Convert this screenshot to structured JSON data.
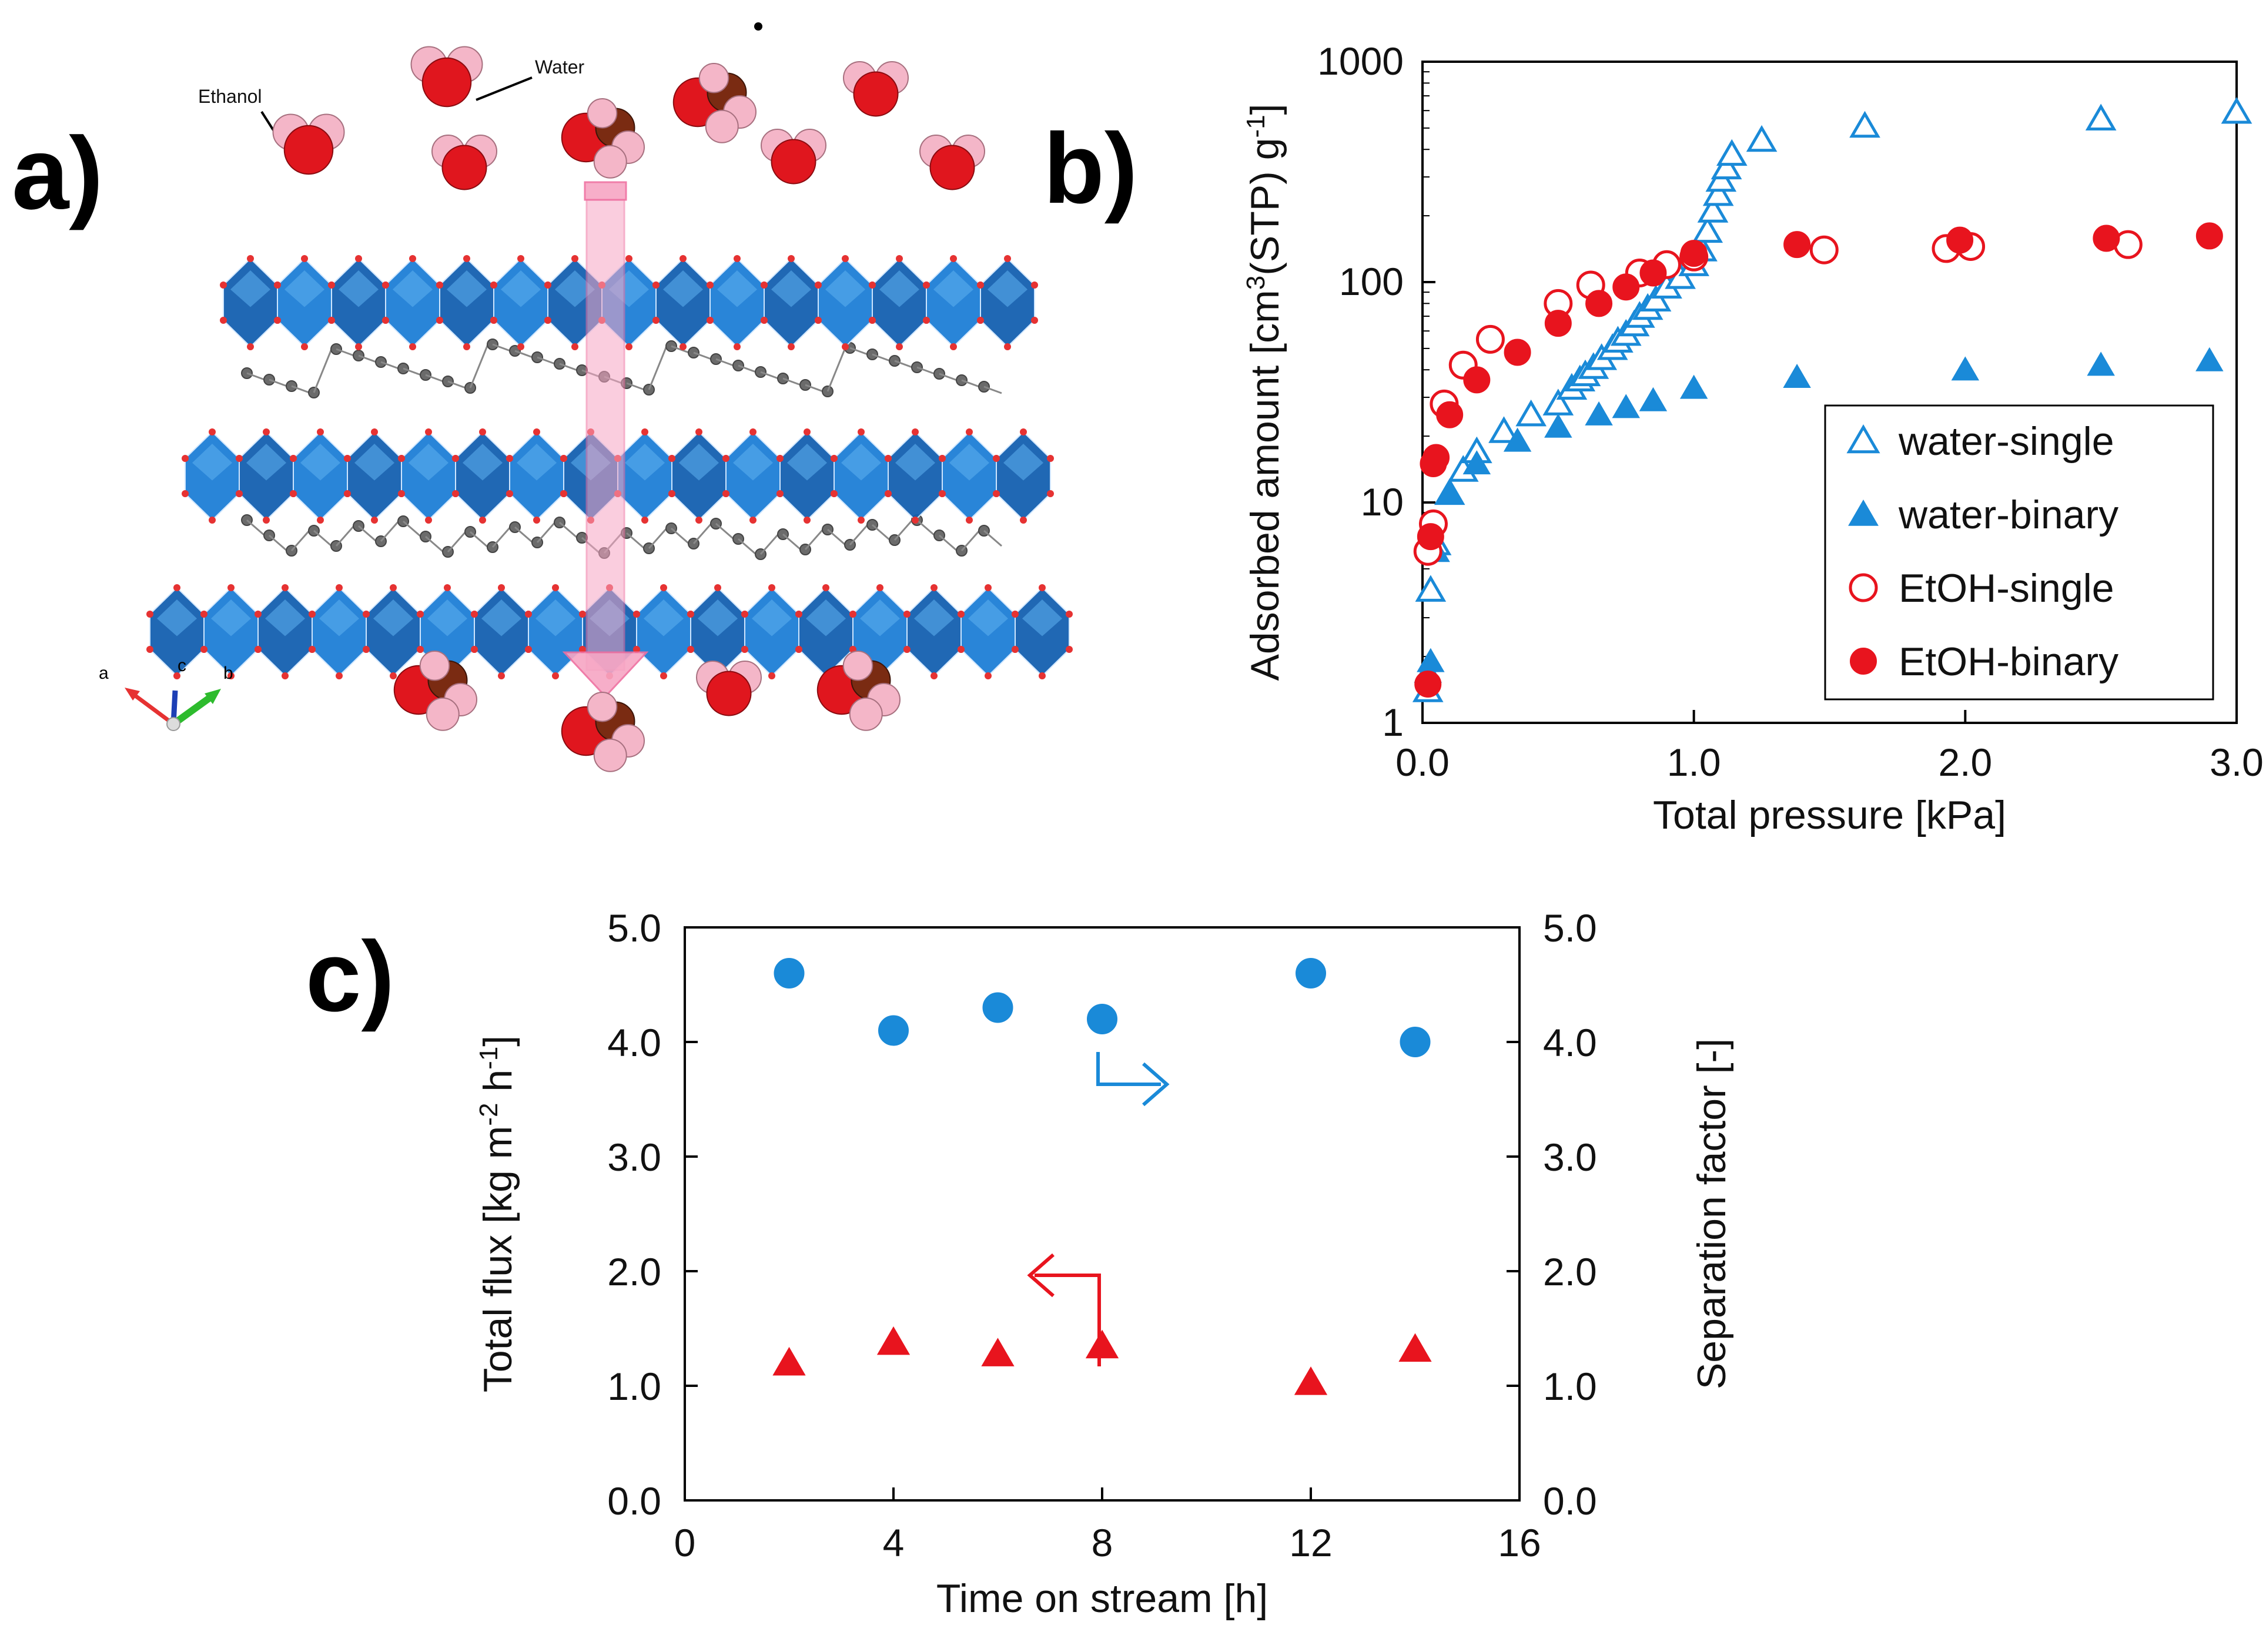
{
  "panels": {
    "a": {
      "label": "a)",
      "molecule_labels": {
        "ethanol": "Ethanol",
        "water": "Water"
      },
      "axis_labels": {
        "a": "a",
        "b": "b",
        "c": "c"
      },
      "colors": {
        "polyhedra": "#1e7fd6",
        "polyhedra_dark": "#1560b0",
        "oxygen": "#e63232",
        "linker": "#6b6b6b",
        "arrow": "#f7a6c4",
        "molecule_h": "#f4b6c8",
        "molecule_o": "#e0161e",
        "molecule_c": "#7a2b12"
      }
    },
    "b": {
      "label": "b)"
    },
    "c": {
      "label": "c)"
    }
  },
  "chart_data": [
    {
      "id": "b",
      "type": "scatter",
      "xlabel": "Total pressure [kPa]",
      "ylabel_parts": [
        "Adsorbed amount [cm",
        "3",
        "(STP) g",
        "-1",
        "]"
      ],
      "yscale": "log",
      "xlim": [
        0,
        3.0
      ],
      "ylim": [
        1,
        1000
      ],
      "xticks": [
        0,
        1.0,
        2.0,
        3.0
      ],
      "xtick_labels": [
        "0.0",
        "1.0",
        "2.0",
        "3.0"
      ],
      "yticks": [
        1,
        10,
        100,
        1000
      ],
      "ytick_labels": [
        "1",
        "10",
        "100",
        "1000"
      ],
      "legend_position": "bottom-right",
      "series": [
        {
          "name": "water-single",
          "marker": "triangle",
          "filled": false,
          "color": "#1a8ad8",
          "x": [
            0.02,
            0.03,
            0.05,
            0.1,
            0.15,
            0.2,
            0.3,
            0.4,
            0.5,
            0.55,
            0.58,
            0.6,
            0.63,
            0.66,
            0.7,
            0.72,
            0.75,
            0.78,
            0.8,
            0.83,
            0.86,
            0.9,
            0.95,
            1.0,
            1.03,
            1.05,
            1.07,
            1.09,
            1.1,
            1.12,
            1.14,
            1.25,
            1.63,
            2.5,
            3.0
          ],
          "y": [
            1.4,
            4.0,
            6.5,
            11,
            14,
            17,
            21,
            25,
            28,
            33,
            36,
            38,
            41,
            45,
            50,
            54,
            58,
            64,
            70,
            76,
            83,
            95,
            105,
            120,
            140,
            170,
            210,
            250,
            290,
            330,
            380,
            440,
            510,
            550,
            590
          ]
        },
        {
          "name": "water-binary",
          "marker": "triangle",
          "filled": true,
          "color": "#1a8ad8",
          "x": [
            0.02,
            0.03,
            0.05,
            0.1,
            0.2,
            0.35,
            0.5,
            0.65,
            0.75,
            0.85,
            1.0,
            1.38,
            2.0,
            2.5,
            2.9
          ],
          "y": [
            1.7,
            1.9,
            6.0,
            11,
            15,
            19,
            22,
            25,
            27,
            29,
            33,
            37,
            40,
            42,
            44
          ]
        },
        {
          "name": "EtOH-single",
          "marker": "circle",
          "filled": false,
          "color": "#e8141e",
          "x": [
            0.02,
            0.04,
            0.08,
            0.15,
            0.25,
            0.5,
            0.62,
            0.8,
            0.9,
            1.0,
            1.48,
            1.93,
            2.02,
            2.6
          ],
          "y": [
            6.0,
            8.0,
            28,
            42,
            55,
            80,
            97,
            110,
            120,
            130,
            140,
            142,
            145,
            148
          ]
        },
        {
          "name": "EtOH-binary",
          "marker": "circle",
          "filled": true,
          "color": "#e8141e",
          "x": [
            0.02,
            0.03,
            0.04,
            0.05,
            0.1,
            0.2,
            0.35,
            0.5,
            0.65,
            0.75,
            0.85,
            1.0,
            1.38,
            1.98,
            2.52,
            2.9
          ],
          "y": [
            1.5,
            7.0,
            15,
            16,
            25,
            36,
            48,
            65,
            80,
            95,
            110,
            135,
            148,
            155,
            158,
            162
          ]
        }
      ]
    },
    {
      "id": "c",
      "type": "scatter",
      "xlabel": "Time on stream [h]",
      "ylabel_parts": [
        "Total flux [kg m",
        "-2",
        " h",
        "-1",
        "]"
      ],
      "y2label": "Separation factor [-]",
      "xlim": [
        0,
        16
      ],
      "ylim": [
        0,
        5.0
      ],
      "y2lim": [
        0,
        5.0
      ],
      "xticks": [
        0,
        4,
        8,
        12,
        16
      ],
      "xtick_labels": [
        "0",
        "4",
        "8",
        "12",
        "16"
      ],
      "yticks": [
        0,
        1,
        2,
        3,
        4,
        5
      ],
      "ytick_labels": [
        "0.0",
        "1.0",
        "2.0",
        "3.0",
        "4.0",
        "5.0"
      ],
      "y2tick_labels": [
        "0.0",
        "1.0",
        "2.0",
        "3.0",
        "4.0",
        "5.0"
      ],
      "series": [
        {
          "name": "Separation factor",
          "axis": "right",
          "marker": "circle",
          "filled": true,
          "color": "#1a8ad8",
          "x": [
            2,
            4,
            6,
            8,
            12,
            14
          ],
          "y": [
            4.6,
            4.1,
            4.3,
            4.2,
            4.6,
            4.0
          ]
        },
        {
          "name": "Total flux",
          "axis": "left",
          "marker": "triangle",
          "filled": true,
          "color": "#e8141e",
          "x": [
            2,
            4,
            6,
            8,
            12,
            14
          ],
          "y": [
            1.2,
            1.38,
            1.28,
            1.35,
            1.03,
            1.32
          ]
        }
      ],
      "annotations": [
        {
          "name": "right-axis-arrow",
          "points_to": "right",
          "color": "#1a8ad8"
        },
        {
          "name": "left-axis-arrow",
          "points_to": "left",
          "color": "#e8141e"
        }
      ]
    }
  ]
}
